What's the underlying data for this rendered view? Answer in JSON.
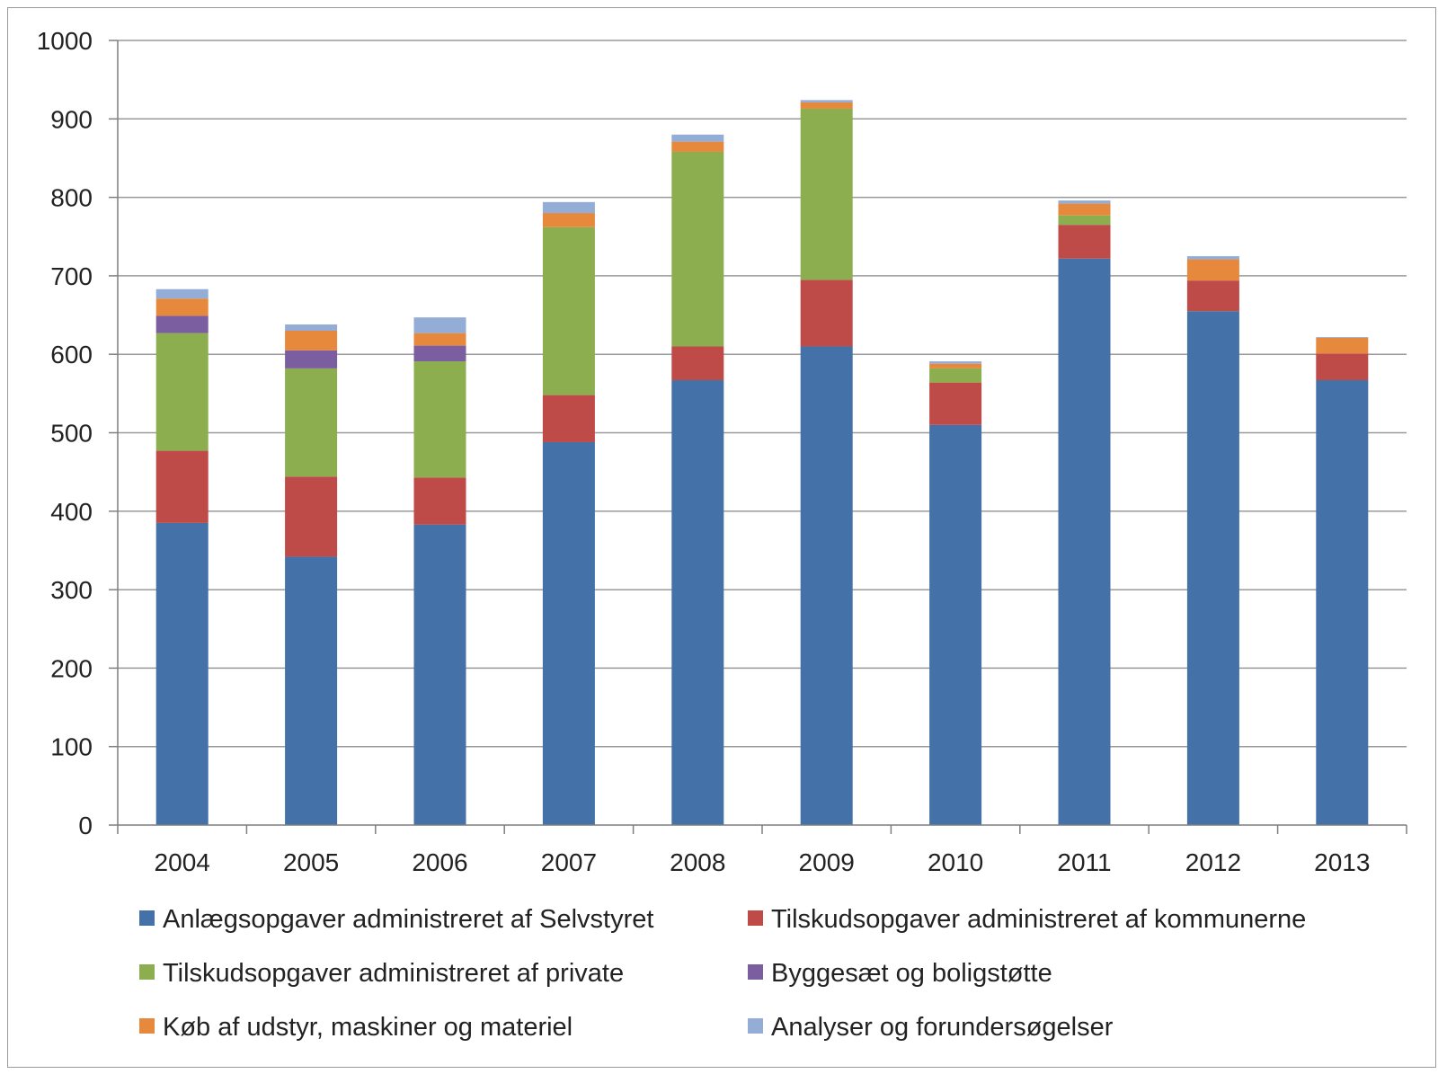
{
  "chart_data": {
    "type": "bar",
    "stacked": true,
    "title": "",
    "xlabel": "",
    "ylabel": "",
    "ylim": [
      0,
      1000
    ],
    "yticks": [
      "0",
      "100",
      "200",
      "300",
      "400",
      "500",
      "600",
      "700",
      "800",
      "900",
      "1000"
    ],
    "grid": true,
    "legend_position": "bottom",
    "categories": [
      "2004",
      "2005",
      "2006",
      "2007",
      "2008",
      "2009",
      "2010",
      "2011",
      "2012",
      "2013"
    ],
    "series": [
      {
        "name": "Anlægsopgaver administreret af Selvstyret",
        "color": "#4472A8",
        "values": [
          385,
          342,
          383,
          488,
          567,
          610,
          510,
          722,
          655,
          567
        ]
      },
      {
        "name": "Tilskudsopgaver administreret af kommunerne",
        "color": "#BE4B48",
        "values": [
          92,
          102,
          60,
          60,
          43,
          85,
          54,
          43,
          39,
          34
        ]
      },
      {
        "name": "Tilskudsopgaver administreret af private",
        "color": "#8DAE4F",
        "values": [
          150,
          138,
          148,
          214,
          248,
          218,
          18,
          12,
          0,
          0
        ]
      },
      {
        "name": "Byggesæt og boligstøtte",
        "color": "#7A5EA0",
        "values": [
          22,
          23,
          20,
          0,
          0,
          0,
          0,
          0,
          0,
          0
        ]
      },
      {
        "name": "Køb af udstyr, maskiner og materiel",
        "color": "#E6893D",
        "values": [
          22,
          25,
          16,
          18,
          13,
          8,
          6,
          15,
          27,
          20
        ]
      },
      {
        "name": "Analyser og forundersøgelser",
        "color": "#93ADD6",
        "values": [
          12,
          8,
          20,
          14,
          9,
          3,
          3,
          4,
          4,
          1
        ]
      }
    ]
  }
}
